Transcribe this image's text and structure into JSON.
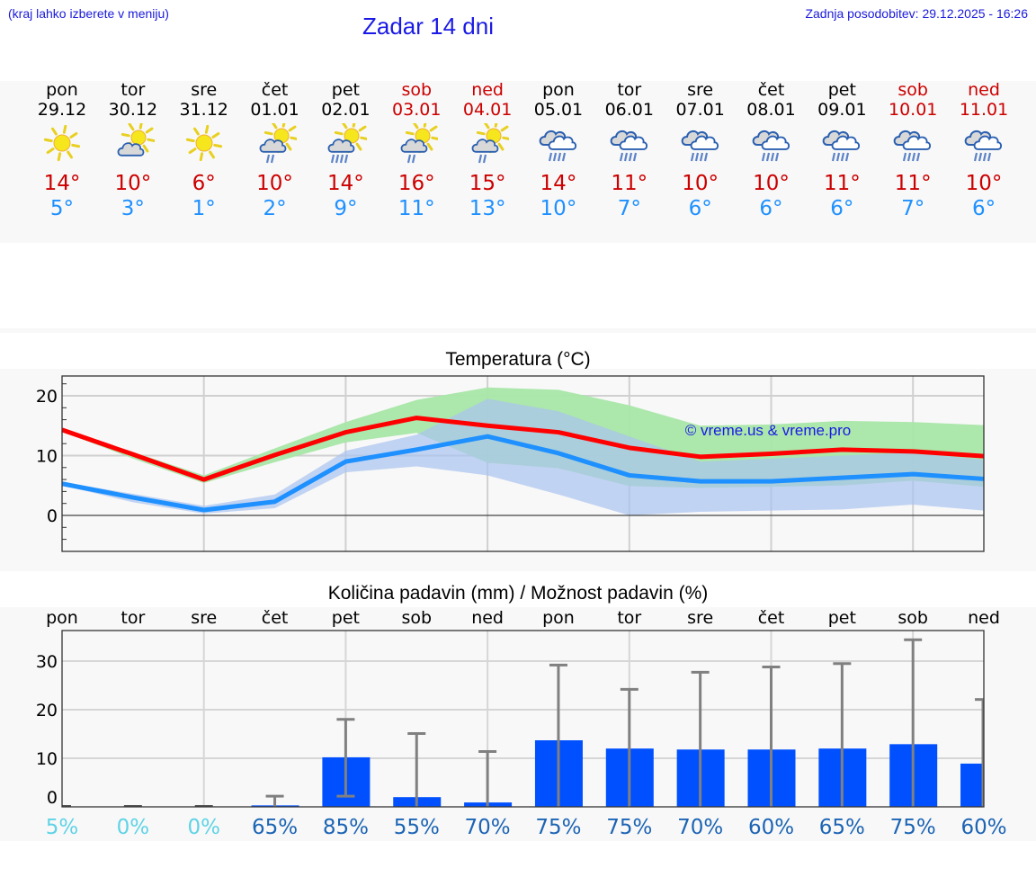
{
  "header": {
    "menu_hint": "(kraj lahko izberete v meniju)",
    "title": "Zadar 14 dni",
    "last_update": "Zadnja posodobitev: 29.12.2025 - 16:26"
  },
  "colors": {
    "weekday": "#000000",
    "weekend": "#cc0000",
    "tmax": "#cc0000",
    "tmin": "#1e90ff",
    "line_max": "#ff0000",
    "line_min": "#1e90ff",
    "band_max": "#a8e6a8",
    "band_min": "#a9c3f0",
    "band_overlap": "#7cc7a8",
    "bar": "#0050ff",
    "errorbar": "#808080",
    "prob_low": "#5fd3e6",
    "prob_high": "#1c64b4"
  },
  "days": [
    {
      "name": "pon",
      "date": "29.12",
      "weekend": false,
      "icon": "sun-icon",
      "tmax": "14°",
      "tmin": "5°"
    },
    {
      "name": "tor",
      "date": "30.12",
      "weekend": false,
      "icon": "sun-cloud-icon",
      "tmax": "10°",
      "tmin": "3°"
    },
    {
      "name": "sre",
      "date": "31.12",
      "weekend": false,
      "icon": "sun-icon",
      "tmax": "6°",
      "tmin": "1°"
    },
    {
      "name": "čet",
      "date": "01.01",
      "weekend": false,
      "icon": "sun-cloud-light-rain-icon",
      "tmax": "10°",
      "tmin": "2°"
    },
    {
      "name": "pet",
      "date": "02.01",
      "weekend": false,
      "icon": "sun-cloud-rain-icon",
      "tmax": "14°",
      "tmin": "9°"
    },
    {
      "name": "sob",
      "date": "03.01",
      "weekend": true,
      "icon": "sun-cloud-light-rain-icon",
      "tmax": "16°",
      "tmin": "11°"
    },
    {
      "name": "ned",
      "date": "04.01",
      "weekend": true,
      "icon": "sun-cloud-light-rain-icon",
      "tmax": "15°",
      "tmin": "13°"
    },
    {
      "name": "pon",
      "date": "05.01",
      "weekend": false,
      "icon": "cloud-rain-icon",
      "tmax": "14°",
      "tmin": "10°"
    },
    {
      "name": "tor",
      "date": "06.01",
      "weekend": false,
      "icon": "cloud-rain-icon",
      "tmax": "11°",
      "tmin": "7°"
    },
    {
      "name": "sre",
      "date": "07.01",
      "weekend": false,
      "icon": "cloud-rain-icon",
      "tmax": "10°",
      "tmin": "6°"
    },
    {
      "name": "čet",
      "date": "08.01",
      "weekend": false,
      "icon": "cloud-rain-icon",
      "tmax": "10°",
      "tmin": "6°"
    },
    {
      "name": "pet",
      "date": "09.01",
      "weekend": false,
      "icon": "cloud-rain-icon",
      "tmax": "11°",
      "tmin": "6°"
    },
    {
      "name": "sob",
      "date": "10.01",
      "weekend": true,
      "icon": "cloud-rain-icon",
      "tmax": "11°",
      "tmin": "7°"
    },
    {
      "name": "ned",
      "date": "11.01",
      "weekend": true,
      "icon": "cloud-rain-icon",
      "tmax": "10°",
      "tmin": "6°"
    }
  ],
  "chart_data": [
    {
      "type": "line",
      "title": "Temperatura (°C)",
      "xlabel": "",
      "ylabel": "",
      "ylim": [
        -6,
        23
      ],
      "yticks": [
        0,
        10,
        20
      ],
      "grid": true,
      "watermark": "© vreme.us & vreme.pro",
      "x": [
        "29.12",
        "30.12",
        "31.12",
        "01.01",
        "02.01",
        "03.01",
        "04.01",
        "05.01",
        "06.01",
        "07.01",
        "08.01",
        "09.01",
        "10.01",
        "11.01"
      ],
      "series": [
        {
          "name": "max",
          "color": "#ff0000",
          "values": [
            14.3,
            10.2,
            6.0,
            10.1,
            13.9,
            16.3,
            15.0,
            13.9,
            11.3,
            9.8,
            10.3,
            11.0,
            10.7,
            9.9
          ]
        },
        {
          "name": "min",
          "color": "#1e90ff",
          "values": [
            5.3,
            3.0,
            0.9,
            2.3,
            9.0,
            11.0,
            13.2,
            10.4,
            6.7,
            5.7,
            5.7,
            6.3,
            6.9,
            6.1
          ]
        },
        {
          "name": "max_band_upper",
          "values": [
            14.5,
            10.6,
            6.7,
            11.2,
            15.6,
            19.3,
            21.4,
            21.0,
            18.4,
            15.0,
            15.2,
            15.8,
            15.6,
            15.1
          ]
        },
        {
          "name": "max_band_lower",
          "values": [
            14.0,
            9.5,
            5.4,
            8.9,
            12.2,
            13.8,
            8.8,
            7.9,
            4.9,
            4.6,
            4.8,
            5.0,
            5.8,
            4.8
          ]
        },
        {
          "name": "min_band_upper",
          "values": [
            5.6,
            3.6,
            1.6,
            3.5,
            10.8,
            13.5,
            19.5,
            17.4,
            13.2,
            9.0,
            9.5,
            10.0,
            10.5,
            9.3
          ]
        },
        {
          "name": "min_band_lower",
          "values": [
            5.0,
            2.2,
            0.3,
            1.2,
            7.2,
            8.2,
            6.7,
            3.5,
            0.0,
            0.6,
            0.8,
            1.0,
            1.8,
            0.8
          ]
        }
      ]
    },
    {
      "type": "bar",
      "title": "Količina padavin (mm) / Možnost padavin (%)",
      "xlabel": "",
      "ylabel": "",
      "ylim": [
        0,
        37
      ],
      "yticks": [
        0,
        10,
        20,
        30
      ],
      "grid": true,
      "categories": [
        "pon",
        "tor",
        "sre",
        "čet",
        "pet",
        "sob",
        "ned",
        "pon",
        "tor",
        "sre",
        "čet",
        "pet",
        "sob",
        "ned"
      ],
      "series": [
        {
          "name": "precip_mm",
          "values": [
            0,
            0,
            0,
            0.3,
            10.2,
            2.0,
            0.9,
            13.7,
            12.0,
            11.8,
            11.8,
            12.0,
            12.9,
            8.9
          ]
        },
        {
          "name": "precip_max_mm",
          "values": [
            0,
            0,
            0,
            2.2,
            18.0,
            15.1,
            11.4,
            29.2,
            24.2,
            27.7,
            28.8,
            29.5,
            34.4,
            22.1
          ]
        },
        {
          "name": "precip_min_mm",
          "values": [
            0,
            0,
            0,
            0,
            2.2,
            0,
            0,
            0,
            0,
            0,
            0,
            0,
            0,
            0
          ]
        },
        {
          "name": "probability_pct",
          "values": [
            5,
            0,
            0,
            65,
            85,
            55,
            70,
            75,
            75,
            70,
            60,
            65,
            75,
            60
          ]
        }
      ],
      "probability_labels": [
        "5%",
        "0%",
        "0%",
        "65%",
        "85%",
        "55%",
        "70%",
        "75%",
        "75%",
        "70%",
        "60%",
        "65%",
        "75%",
        "60%"
      ]
    }
  ]
}
